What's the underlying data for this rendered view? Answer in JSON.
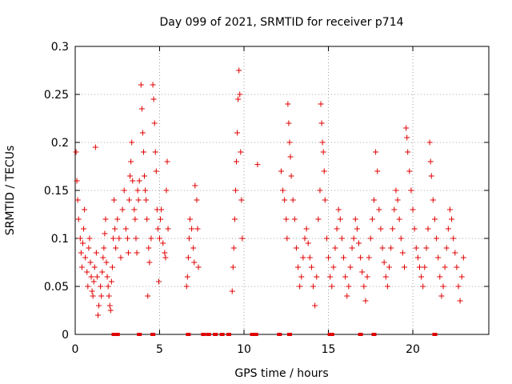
{
  "chart_data": {
    "type": "scatter",
    "title": "Day 099 of 2021, SRMTID for receiver p714",
    "xlabel": "GPS time / hours",
    "ylabel": "SRMTID / TECUs",
    "xlim": [
      0,
      24.5
    ],
    "ylim": [
      0,
      0.3
    ],
    "xticks": [
      0,
      5,
      10,
      15,
      20
    ],
    "xtick_labels": [
      "0",
      "5",
      "10",
      "15",
      "20"
    ],
    "yticks": [
      0,
      0.05,
      0.1,
      0.15,
      0.2,
      0.25,
      0.3
    ],
    "ytick_labels": [
      "0",
      "0.05",
      "0.1",
      "0.15",
      "0.2",
      "0.25",
      "0.3"
    ],
    "grid": true,
    "marker": "+",
    "color": "#e00000",
    "series": [
      {
        "name": "SRMTID",
        "points": [
          [
            0.05,
            0.19
          ],
          [
            0.1,
            0.16
          ],
          [
            0.15,
            0.14
          ],
          [
            0.2,
            0.12
          ],
          [
            0.3,
            0.1
          ],
          [
            0.35,
            0.085
          ],
          [
            0.4,
            0.07
          ],
          [
            0.45,
            0.095
          ],
          [
            0.5,
            0.11
          ],
          [
            0.55,
            0.13
          ],
          [
            0.6,
            0.08
          ],
          [
            0.7,
            0.065
          ],
          [
            0.75,
            0.05
          ],
          [
            0.8,
            0.09
          ],
          [
            0.85,
            0.1
          ],
          [
            0.9,
            0.075
          ],
          [
            0.95,
            0.06
          ],
          [
            1.0,
            0.045
          ],
          [
            1.05,
            0.04
          ],
          [
            1.1,
            0.055
          ],
          [
            1.15,
            0.07
          ],
          [
            1.2,
            0.195
          ],
          [
            1.25,
            0.085
          ],
          [
            1.3,
            0.06
          ],
          [
            1.35,
            0.02
          ],
          [
            1.4,
            0.03
          ],
          [
            1.5,
            0.05
          ],
          [
            1.55,
            0.04
          ],
          [
            1.6,
            0.065
          ],
          [
            1.65,
            0.08
          ],
          [
            1.7,
            0.09
          ],
          [
            1.75,
            0.105
          ],
          [
            1.8,
            0.12
          ],
          [
            1.85,
            0.075
          ],
          [
            1.9,
            0.06
          ],
          [
            1.95,
            0.05
          ],
          [
            2.0,
            0.04
          ],
          [
            2.05,
            0.03
          ],
          [
            2.1,
            0.025
          ],
          [
            2.15,
            0.055
          ],
          [
            2.2,
            0.07
          ],
          [
            2.25,
            0.1
          ],
          [
            2.3,
            0.14
          ],
          [
            2.35,
            0.11
          ],
          [
            2.4,
            0.09
          ],
          [
            2.5,
            0.12
          ],
          [
            2.6,
            0.1
          ],
          [
            2.7,
            0.08
          ],
          [
            2.8,
            0.13
          ],
          [
            2.9,
            0.15
          ],
          [
            3.0,
            0.11
          ],
          [
            3.1,
            0.1
          ],
          [
            3.15,
            0.085
          ],
          [
            3.2,
            0.14
          ],
          [
            3.25,
            0.165
          ],
          [
            3.3,
            0.18
          ],
          [
            3.35,
            0.2
          ],
          [
            3.4,
            0.16
          ],
          [
            3.5,
            0.13
          ],
          [
            3.55,
            0.12
          ],
          [
            3.6,
            0.1
          ],
          [
            3.65,
            0.085
          ],
          [
            3.7,
            0.15
          ],
          [
            3.75,
            0.14
          ],
          [
            3.8,
            0.16
          ],
          [
            3.9,
            0.26
          ],
          [
            3.95,
            0.235
          ],
          [
            4.0,
            0.21
          ],
          [
            4.05,
            0.19
          ],
          [
            4.1,
            0.165
          ],
          [
            4.15,
            0.15
          ],
          [
            4.2,
            0.14
          ],
          [
            4.25,
            0.12
          ],
          [
            4.3,
            0.04
          ],
          [
            4.35,
            0.09
          ],
          [
            4.4,
            0.075
          ],
          [
            4.5,
            0.1
          ],
          [
            4.6,
            0.26
          ],
          [
            4.65,
            0.245
          ],
          [
            4.7,
            0.22
          ],
          [
            4.75,
            0.19
          ],
          [
            4.8,
            0.17
          ],
          [
            4.85,
            0.13
          ],
          [
            4.9,
            0.11
          ],
          [
            4.95,
            0.055
          ],
          [
            5.0,
            0.1
          ],
          [
            5.05,
            0.12
          ],
          [
            5.1,
            0.13
          ],
          [
            5.2,
            0.095
          ],
          [
            5.3,
            0.085
          ],
          [
            5.35,
            0.08
          ],
          [
            5.4,
            0.15
          ],
          [
            5.45,
            0.18
          ],
          [
            5.5,
            0.11
          ],
          [
            6.6,
            0.05
          ],
          [
            6.65,
            0.06
          ],
          [
            6.7,
            0.08
          ],
          [
            6.75,
            0.1
          ],
          [
            6.8,
            0.12
          ],
          [
            6.9,
            0.11
          ],
          [
            7.0,
            0.09
          ],
          [
            7.05,
            0.075
          ],
          [
            7.1,
            0.155
          ],
          [
            7.2,
            0.14
          ],
          [
            7.25,
            0.11
          ],
          [
            7.3,
            0.07
          ],
          [
            9.3,
            0.045
          ],
          [
            9.35,
            0.07
          ],
          [
            9.4,
            0.09
          ],
          [
            9.45,
            0.12
          ],
          [
            9.5,
            0.15
          ],
          [
            9.55,
            0.18
          ],
          [
            9.6,
            0.21
          ],
          [
            9.65,
            0.245
          ],
          [
            9.7,
            0.275
          ],
          [
            9.75,
            0.25
          ],
          [
            9.8,
            0.19
          ],
          [
            9.85,
            0.14
          ],
          [
            9.9,
            0.1
          ],
          [
            10.8,
            0.177
          ],
          [
            12.2,
            0.17
          ],
          [
            12.3,
            0.15
          ],
          [
            12.4,
            0.14
          ],
          [
            12.5,
            0.12
          ],
          [
            12.55,
            0.1
          ],
          [
            12.6,
            0.24
          ],
          [
            12.65,
            0.22
          ],
          [
            12.7,
            0.2
          ],
          [
            12.75,
            0.185
          ],
          [
            12.8,
            0.165
          ],
          [
            12.9,
            0.14
          ],
          [
            13.0,
            0.12
          ],
          [
            13.1,
            0.09
          ],
          [
            13.2,
            0.07
          ],
          [
            13.3,
            0.05
          ],
          [
            13.4,
            0.06
          ],
          [
            13.5,
            0.08
          ],
          [
            13.6,
            0.1
          ],
          [
            13.7,
            0.11
          ],
          [
            13.8,
            0.095
          ],
          [
            13.9,
            0.08
          ],
          [
            14.0,
            0.07
          ],
          [
            14.1,
            0.05
          ],
          [
            14.2,
            0.03
          ],
          [
            14.3,
            0.06
          ],
          [
            14.4,
            0.12
          ],
          [
            14.5,
            0.15
          ],
          [
            14.55,
            0.24
          ],
          [
            14.6,
            0.22
          ],
          [
            14.65,
            0.2
          ],
          [
            14.7,
            0.19
          ],
          [
            14.75,
            0.17
          ],
          [
            14.8,
            0.14
          ],
          [
            14.9,
            0.1
          ],
          [
            15.0,
            0.08
          ],
          [
            15.1,
            0.06
          ],
          [
            15.2,
            0.05
          ],
          [
            15.3,
            0.07
          ],
          [
            15.4,
            0.09
          ],
          [
            15.5,
            0.11
          ],
          [
            15.6,
            0.13
          ],
          [
            15.7,
            0.12
          ],
          [
            15.8,
            0.1
          ],
          [
            15.9,
            0.08
          ],
          [
            16.0,
            0.06
          ],
          [
            16.1,
            0.04
          ],
          [
            16.2,
            0.05
          ],
          [
            16.3,
            0.07
          ],
          [
            16.4,
            0.09
          ],
          [
            16.5,
            0.1
          ],
          [
            16.6,
            0.12
          ],
          [
            16.7,
            0.11
          ],
          [
            16.8,
            0.095
          ],
          [
            16.9,
            0.08
          ],
          [
            17.0,
            0.065
          ],
          [
            17.1,
            0.05
          ],
          [
            17.2,
            0.035
          ],
          [
            17.3,
            0.06
          ],
          [
            17.4,
            0.08
          ],
          [
            17.5,
            0.1
          ],
          [
            17.6,
            0.12
          ],
          [
            17.7,
            0.14
          ],
          [
            17.8,
            0.19
          ],
          [
            17.9,
            0.17
          ],
          [
            18.0,
            0.13
          ],
          [
            18.1,
            0.11
          ],
          [
            18.2,
            0.09
          ],
          [
            18.3,
            0.075
          ],
          [
            18.4,
            0.06
          ],
          [
            18.5,
            0.05
          ],
          [
            18.6,
            0.07
          ],
          [
            18.7,
            0.09
          ],
          [
            18.8,
            0.11
          ],
          [
            18.9,
            0.13
          ],
          [
            19.0,
            0.15
          ],
          [
            19.1,
            0.14
          ],
          [
            19.2,
            0.12
          ],
          [
            19.3,
            0.1
          ],
          [
            19.4,
            0.085
          ],
          [
            19.5,
            0.07
          ],
          [
            19.6,
            0.215
          ],
          [
            19.65,
            0.205
          ],
          [
            19.7,
            0.19
          ],
          [
            19.8,
            0.17
          ],
          [
            19.9,
            0.15
          ],
          [
            20.0,
            0.13
          ],
          [
            20.1,
            0.11
          ],
          [
            20.2,
            0.09
          ],
          [
            20.3,
            0.08
          ],
          [
            20.4,
            0.07
          ],
          [
            20.5,
            0.06
          ],
          [
            20.6,
            0.05
          ],
          [
            20.7,
            0.07
          ],
          [
            20.8,
            0.09
          ],
          [
            20.9,
            0.11
          ],
          [
            21.0,
            0.2
          ],
          [
            21.05,
            0.18
          ],
          [
            21.1,
            0.165
          ],
          [
            21.2,
            0.14
          ],
          [
            21.3,
            0.12
          ],
          [
            21.4,
            0.1
          ],
          [
            21.5,
            0.08
          ],
          [
            21.6,
            0.06
          ],
          [
            21.7,
            0.04
          ],
          [
            21.8,
            0.05
          ],
          [
            21.9,
            0.07
          ],
          [
            22.0,
            0.09
          ],
          [
            22.1,
            0.11
          ],
          [
            22.2,
            0.13
          ],
          [
            22.3,
            0.12
          ],
          [
            22.4,
            0.1
          ],
          [
            22.5,
            0.085
          ],
          [
            22.6,
            0.07
          ],
          [
            22.7,
            0.05
          ],
          [
            22.8,
            0.035
          ],
          [
            22.9,
            0.06
          ],
          [
            23.0,
            0.08
          ]
        ]
      }
    ],
    "zero_points_x": [
      2.3,
      2.4,
      2.5,
      3.8,
      4.6,
      6.7,
      7.6,
      7.9,
      8.3,
      8.7,
      9.1,
      10.5,
      10.6,
      10.7,
      12.1,
      12.7,
      15.1,
      15.2,
      16.9,
      17.7,
      21.3
    ]
  }
}
